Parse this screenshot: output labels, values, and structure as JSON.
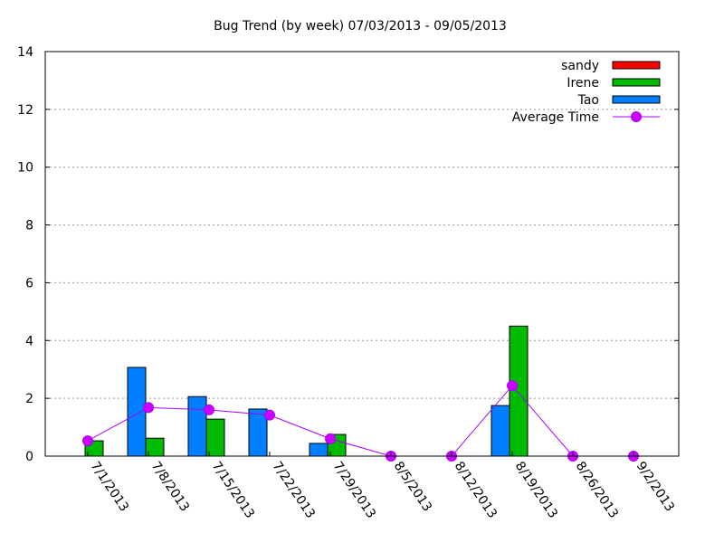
{
  "chart_data": {
    "type": "bar",
    "title": "Bug Trend (by week) 07/03/2013 - 09/05/2013",
    "xlabel": "",
    "ylabel": "",
    "ylim": [
      0,
      14
    ],
    "yticks": [
      "0",
      "2",
      "4",
      "6",
      "8",
      "10",
      "12",
      "14"
    ],
    "grid": true,
    "legend_position": "top-right",
    "categories": [
      "7/1/2013",
      "7/8/2013",
      "7/15/2013",
      "7/22/2013",
      "7/29/2013",
      "8/5/2013",
      "8/12/2013",
      "8/19/2013",
      "8/26/2013",
      "9/2/2013"
    ],
    "series": [
      {
        "name": "sandy",
        "kind": "bar",
        "color": "#ff0000",
        "values": [
          0,
          0,
          0,
          0,
          0,
          0,
          0,
          0,
          0,
          0
        ]
      },
      {
        "name": "Irene",
        "kind": "bar",
        "color": "#00bb00",
        "values": [
          0.53,
          0.62,
          1.28,
          0,
          0.75,
          0,
          0,
          4.5,
          0,
          0
        ]
      },
      {
        "name": "Tao",
        "kind": "bar",
        "color": "#0080ff",
        "values": [
          0,
          3.07,
          2.06,
          1.63,
          0.44,
          0,
          0,
          1.75,
          0,
          0
        ]
      },
      {
        "name": "Average Time",
        "kind": "line",
        "color": "#aa00ff",
        "marker_color": "#cc00ff",
        "values": [
          0.53,
          1.68,
          1.6,
          1.42,
          0.6,
          0,
          0,
          2.44,
          0,
          0
        ]
      }
    ]
  }
}
